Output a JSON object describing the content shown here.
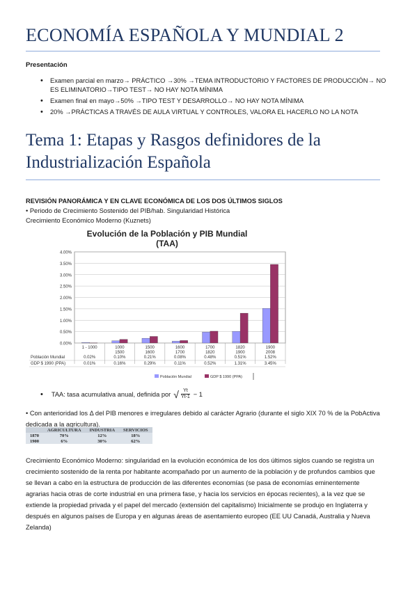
{
  "title": "ECONOMÍA ESPAÑOLA Y MUNDIAL 2",
  "presentation_label": "Presentación",
  "bullets": [
    "Examen parcial en marzo→ PRÁCTICO →30% →TEMA INTRODUCTORIO Y FACTORES DE PRODUCCIÓN→ NO ES ELIMINATORIO→TIPO TEST→ NO HAY NOTA MÍNIMA",
    "Examen final en mayo→50% →TIPO TEST Y DESARROLLO→ NO HAY NOTA MÍNIMA",
    "20% →PRÁCTICAS A TRAVÉS DE AULA VIRTUAL Y CONTROLES, VALORA EL HACERLO NO LA NOTA"
  ],
  "topic_title": "Tema 1: Etapas y Rasgos definidores de la Industrialización Española",
  "section_heading": "REVISIÓN  PANORÁMICA Y EN CLAVE ECONÓMICA DE LOS DOS ÚLTIMOS SIGLOS",
  "line1": "• Periodo de Crecimiento Sostenido del PIB/hab. Singularidad Histórica",
  "line2": "Crecimiento Económico Moderno (Kuznets)",
  "chart_data": {
    "type": "bar",
    "title": "Evolución de la Población y PIB Mundial",
    "subtitle": "(TAA)",
    "categories": [
      "1 - 1000",
      "1000\n1500",
      "1500\n1600",
      "1600\n1700",
      "1700\n1820",
      "1820\n1900",
      "1900\n2008"
    ],
    "ylim": [
      0,
      4.0
    ],
    "yticks": [
      "4.00%",
      "3.50%",
      "3.00%",
      "2.50%",
      "2.00%",
      "1.50%",
      "1.00%",
      "0.50%",
      "0.00%"
    ],
    "grid": true,
    "legend_position": "bottom",
    "series": [
      {
        "name": "Población Mundial",
        "row_label": "Población Mundial",
        "color": "#9999ff",
        "values": [
          0.02,
          0.1,
          0.21,
          0.08,
          0.48,
          0.51,
          1.52
        ],
        "labels": [
          "0.02%",
          "0.10%",
          "0.21%",
          "0.08%",
          "0.48%",
          "0.51%",
          "1.52%"
        ]
      },
      {
        "name": "GDP $ 1990 (PPA)",
        "row_label": "GDP $ 1990 (PPA)",
        "color": "#993366",
        "values": [
          0.01,
          0.16,
          0.29,
          0.11,
          0.52,
          1.31,
          3.45
        ],
        "labels": [
          "0.01%",
          "0.16%",
          "0.29%",
          "0.11%",
          "0.52%",
          "1.31%",
          "3.45%"
        ]
      }
    ]
  },
  "taa": {
    "text": "TAA: tasa acumulativa anual, definida por",
    "numerator": "Yt",
    "denominator": "Yt-1",
    "tail": "− 1"
  },
  "para1": "• Con anterioridad los Δ del PIB menores e irregulares debido al carácter Agrario (durante  el siglo XIX 70 % de la PobActiva dedicada a la agricultura).",
  "small_table": {
    "headers": [
      "",
      "AGRICULTURA",
      "INDUSTRIA",
      "SERVICIOS"
    ],
    "rows": [
      [
        "1870",
        "70%",
        "12%",
        "18%"
      ],
      [
        "1900",
        "6%",
        "30%",
        "62%"
      ]
    ]
  },
  "para2": "Crecimiento Económico Moderno: singularidad en la evolución económica de los dos últimos siglos cuando se registra un crecimiento sostenido de la renta por habitante acompañado por un aumento de la población y de profundos cambios que se llevan a cabo en la estructura de producción de las diferentes economías (se pasa de economías eminentemente agrarias hacia otras de corte industrial en una primera fase, y hacia los servicios en épocas recientes),  a la vez que se extiende la propiedad privada y el papel del mercado (extensión del capitalismo) Inicialmente se produjo en Inglaterra y después en algunos países de Europa y en algunas áreas de asentamiento europeo (EE UU Canadá, Australia y Nueva Zelanda)"
}
